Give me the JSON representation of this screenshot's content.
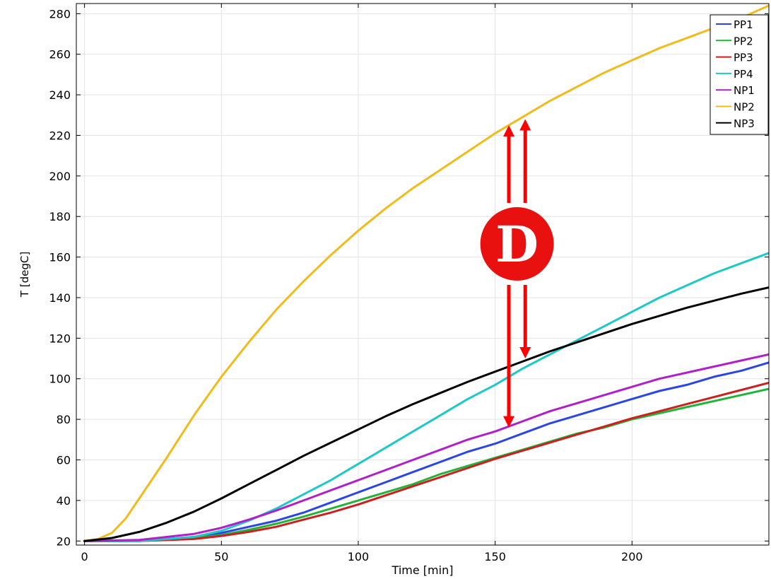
{
  "chart_data": {
    "type": "line",
    "xlabel": "Time [min]",
    "ylabel": "T [degC]",
    "xlim": [
      -3,
      250
    ],
    "ylim": [
      18,
      285
    ],
    "xticks": [
      0,
      50,
      100,
      150,
      200
    ],
    "yticks": [
      20,
      40,
      60,
      80,
      100,
      120,
      140,
      160,
      180,
      200,
      220,
      240,
      260,
      280
    ],
    "grid": true,
    "legend_position": "top-right",
    "series": [
      {
        "name": "PP1",
        "color": "#2b46e6",
        "x": [
          0,
          20,
          40,
          50,
          60,
          70,
          80,
          90,
          100,
          110,
          120,
          130,
          140,
          150,
          160,
          170,
          180,
          190,
          200,
          210,
          220,
          230,
          240,
          250
        ],
        "y": [
          20,
          20,
          22,
          24,
          27,
          30,
          34,
          39,
          44,
          49,
          54,
          59,
          64,
          68,
          73,
          78,
          82,
          86,
          90,
          94,
          97,
          101,
          104,
          108
        ]
      },
      {
        "name": "PP2",
        "color": "#22b33a",
        "x": [
          0,
          20,
          40,
          50,
          60,
          70,
          80,
          90,
          100,
          110,
          120,
          130,
          140,
          150,
          160,
          170,
          180,
          190,
          200,
          210,
          220,
          230,
          240,
          250
        ],
        "y": [
          20,
          20,
          21.5,
          23,
          25.5,
          28.5,
          32,
          36,
          40,
          44,
          48,
          53,
          57,
          61,
          65,
          69,
          73,
          76,
          80,
          83,
          86,
          89,
          92,
          95
        ]
      },
      {
        "name": "PP3",
        "color": "#cc1f1f",
        "x": [
          0,
          20,
          40,
          50,
          60,
          70,
          80,
          90,
          100,
          110,
          120,
          130,
          140,
          150,
          160,
          170,
          180,
          190,
          200,
          210,
          220,
          230,
          240,
          250
        ],
        "y": [
          20,
          20,
          21,
          22.5,
          24.5,
          27,
          30.5,
          34,
          38,
          42.5,
          47,
          51.5,
          56,
          60.5,
          64.5,
          68.5,
          72.5,
          76.5,
          80.5,
          84,
          87.5,
          91,
          94.5,
          98
        ]
      },
      {
        "name": "PP4",
        "color": "#1fc8c8",
        "x": [
          0,
          20,
          40,
          50,
          60,
          70,
          80,
          90,
          100,
          110,
          120,
          130,
          140,
          150,
          160,
          170,
          180,
          190,
          200,
          210,
          220,
          230,
          240,
          250
        ],
        "y": [
          20,
          20,
          22,
          25,
          30,
          36,
          43,
          50,
          58,
          66,
          74,
          82,
          90,
          97,
          105,
          112,
          119,
          126,
          133,
          140,
          146,
          152,
          157,
          162
        ]
      },
      {
        "name": "NP1",
        "color": "#b01fc8",
        "x": [
          0,
          20,
          40,
          50,
          60,
          70,
          80,
          90,
          100,
          110,
          120,
          130,
          140,
          150,
          160,
          170,
          180,
          190,
          200,
          210,
          220,
          230,
          240,
          250
        ],
        "y": [
          20,
          20.5,
          23.5,
          26.5,
          30.5,
          35,
          40,
          45,
          50,
          55,
          60,
          65,
          70,
          74,
          79,
          84,
          88,
          92,
          96,
          100,
          103,
          106,
          109,
          112
        ]
      },
      {
        "name": "NP2",
        "color": "#f2bb1c",
        "x": [
          0,
          5,
          10,
          15,
          20,
          30,
          40,
          50,
          60,
          70,
          80,
          90,
          100,
          110,
          120,
          130,
          140,
          150,
          160,
          170,
          180,
          190,
          200,
          210,
          220,
          230,
          240,
          250
        ],
        "y": [
          20,
          21,
          24,
          31,
          41,
          61,
          82,
          101,
          118,
          134,
          148,
          161,
          173,
          184,
          194,
          203,
          212,
          221,
          229,
          237,
          244,
          251,
          257,
          263,
          268,
          273,
          278,
          284
        ]
      },
      {
        "name": "NP3",
        "color": "#000000",
        "x": [
          0,
          10,
          20,
          30,
          40,
          50,
          60,
          70,
          80,
          90,
          100,
          110,
          120,
          130,
          140,
          150,
          160,
          170,
          180,
          190,
          200,
          210,
          220,
          230,
          240,
          250
        ],
        "y": [
          20,
          21.5,
          24.5,
          29,
          34.5,
          41,
          48,
          55,
          62,
          68.5,
          75,
          81.5,
          87.5,
          93,
          98.5,
          103.5,
          108.5,
          113.5,
          118,
          122.5,
          127,
          131,
          135,
          138.5,
          142,
          145
        ]
      }
    ],
    "annotations": [
      {
        "label": "D",
        "arrow_color": "#ff0000",
        "circle_color": "#e8110f",
        "arrows": [
          {
            "x": 155,
            "y_from": 76,
            "y_to": 225
          },
          {
            "x": 161,
            "y_from": 110,
            "y_to": 228
          }
        ]
      }
    ]
  }
}
